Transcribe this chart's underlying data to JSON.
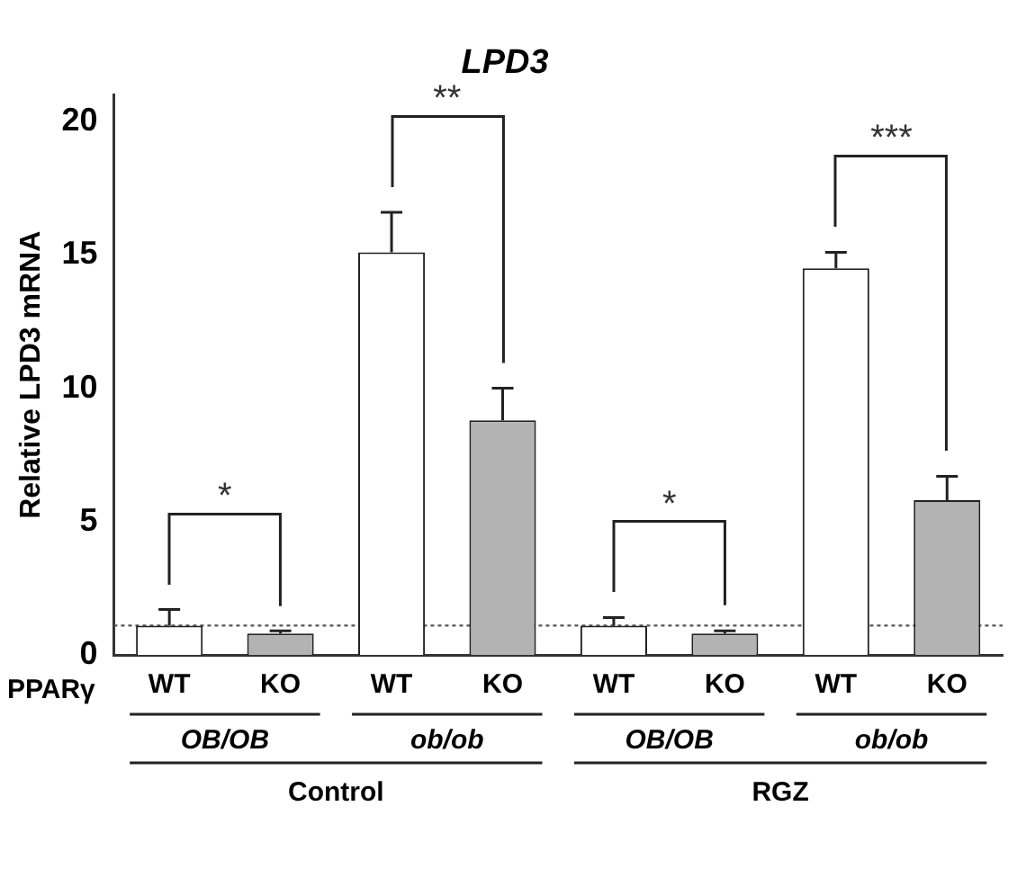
{
  "chart_data": {
    "type": "bar",
    "title": "LPD3",
    "ylabel": "Relative LPD3 mRNA",
    "categories": [
      "WT",
      "KO",
      "WT",
      "KO",
      "WT",
      "KO",
      "WT",
      "KO"
    ],
    "values": [
      1.1,
      0.8,
      15.1,
      8.8,
      1.1,
      0.8,
      14.5,
      5.8
    ],
    "colors": [
      "#ffffff",
      "#b3b3b3",
      "#ffffff",
      "#b3b3b3",
      "#ffffff",
      "#b3b3b3",
      "#ffffff",
      "#b3b3b3"
    ],
    "errors": [
      [
        1.1,
        1.7
      ],
      [
        0.8,
        0.9
      ],
      [
        15.1,
        16.6
      ],
      [
        8.8,
        10.0
      ],
      [
        1.1,
        1.4
      ],
      [
        0.8,
        0.9
      ],
      [
        14.5,
        15.1
      ],
      [
        5.8,
        6.7
      ]
    ],
    "ylim": [
      0,
      21
    ],
    "yticks": [
      0,
      5,
      10,
      15,
      20
    ],
    "grid": false,
    "legend": false,
    "ref_lines": [
      {
        "axis": "y",
        "value": 1.1,
        "color": "#555555",
        "line_style": "dotted"
      }
    ],
    "annotations": [
      "*",
      "**",
      "*",
      "***",
      "PPARγ",
      "OB/OB",
      "ob/ob",
      "OB/OB",
      "ob/ob",
      "Control",
      "RGZ"
    ]
  }
}
